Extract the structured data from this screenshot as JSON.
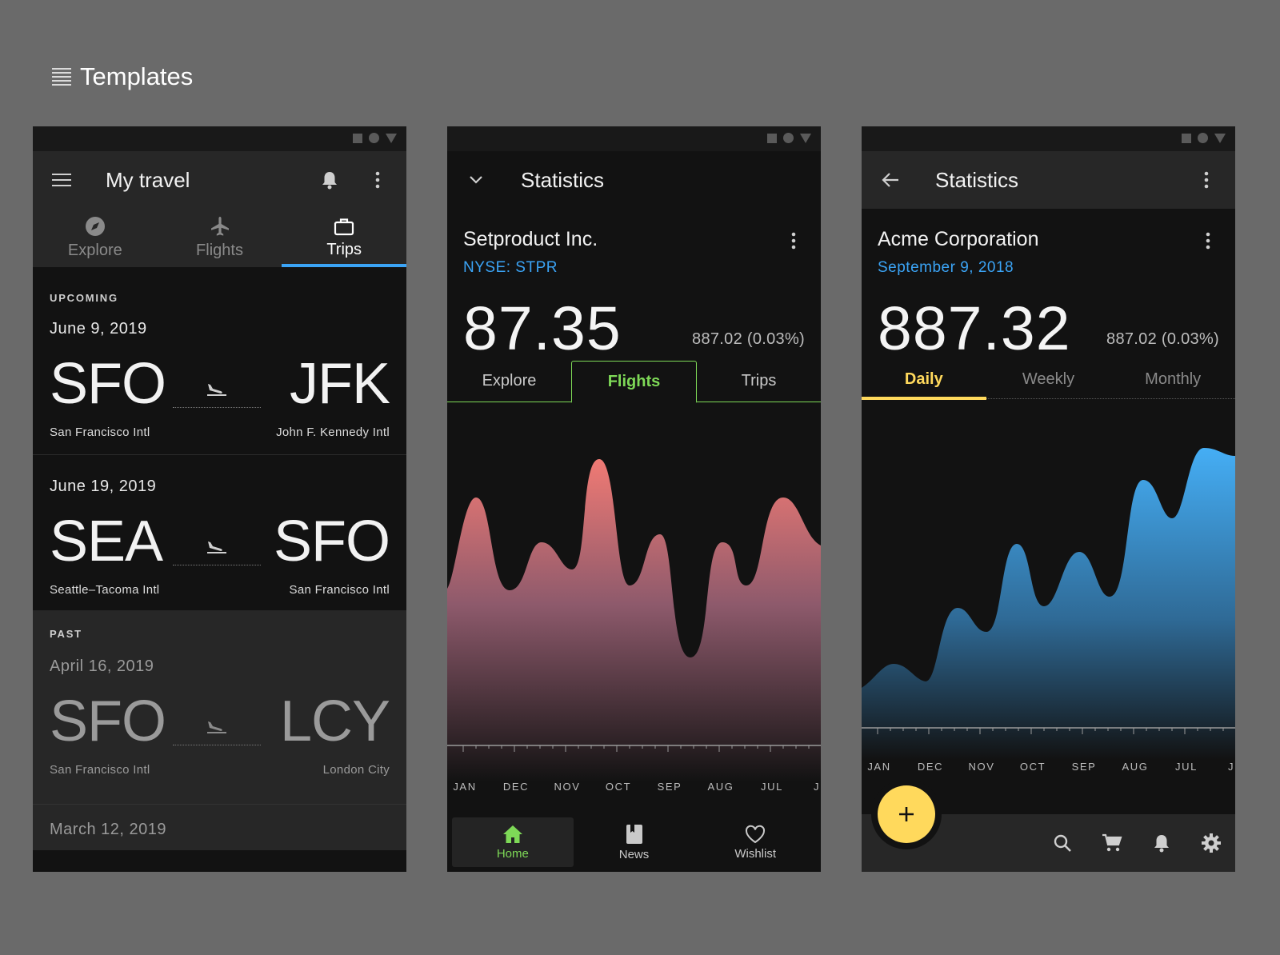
{
  "header": {
    "title": "Templates"
  },
  "travel": {
    "title": "My travel",
    "tabs": [
      {
        "label": "Explore"
      },
      {
        "label": "Flights"
      },
      {
        "label": "Trips"
      }
    ],
    "active_tab": "Trips",
    "upcoming_label": "UPCOMING",
    "past_label": "PAST",
    "upcoming": [
      {
        "date": "June 9, 2019",
        "from_code": "SFO",
        "from_name": "San Francisco Intl",
        "to_code": "JFK",
        "to_name": "John F. Kennedy Intl"
      },
      {
        "date": "June 19, 2019",
        "from_code": "SEA",
        "from_name": "Seattle–Tacoma Intl",
        "to_code": "SFO",
        "to_name": "San Francisco Intl"
      }
    ],
    "past": [
      {
        "date": "April 16, 2019",
        "from_code": "SFO",
        "from_name": "San Francisco Intl",
        "to_code": "LCY",
        "to_name": "London City"
      },
      {
        "date": "March 12, 2019"
      }
    ]
  },
  "stats1": {
    "title": "Statistics",
    "company": "Setproduct Inc.",
    "ticker": "NYSE: STPR",
    "price": "87.35",
    "change": "887.02 (0.03%)",
    "tabs": [
      {
        "label": "Explore"
      },
      {
        "label": "Flights"
      },
      {
        "label": "Trips"
      }
    ],
    "active_tab": "Flights",
    "months": [
      "JAN",
      "DEC",
      "NOV",
      "OCT",
      "SEP",
      "AUG",
      "JUL",
      "J"
    ],
    "nav": [
      {
        "label": "Home",
        "icon": "home-icon"
      },
      {
        "label": "News",
        "icon": "book-icon"
      },
      {
        "label": "Wishlist",
        "icon": "heart-icon"
      }
    ],
    "active_nav": "Home"
  },
  "stats2": {
    "title": "Statistics",
    "company": "Acme Corporation",
    "date": "September 9, 2018",
    "price": "887.32",
    "change": "887.02 (0.03%)",
    "tabs": [
      {
        "label": "Daily"
      },
      {
        "label": "Weekly"
      },
      {
        "label": "Monthly"
      }
    ],
    "active_tab": "Daily",
    "months": [
      "JAN",
      "DEC",
      "NOV",
      "OCT",
      "SEP",
      "AUG",
      "JUL",
      "J"
    ]
  },
  "colors": {
    "accent_blue": "#3ba4f6",
    "accent_green": "#7ed957",
    "accent_yellow": "#ffd95c",
    "chart_red": "#f07a74",
    "chart_blue": "#45aef5"
  }
}
